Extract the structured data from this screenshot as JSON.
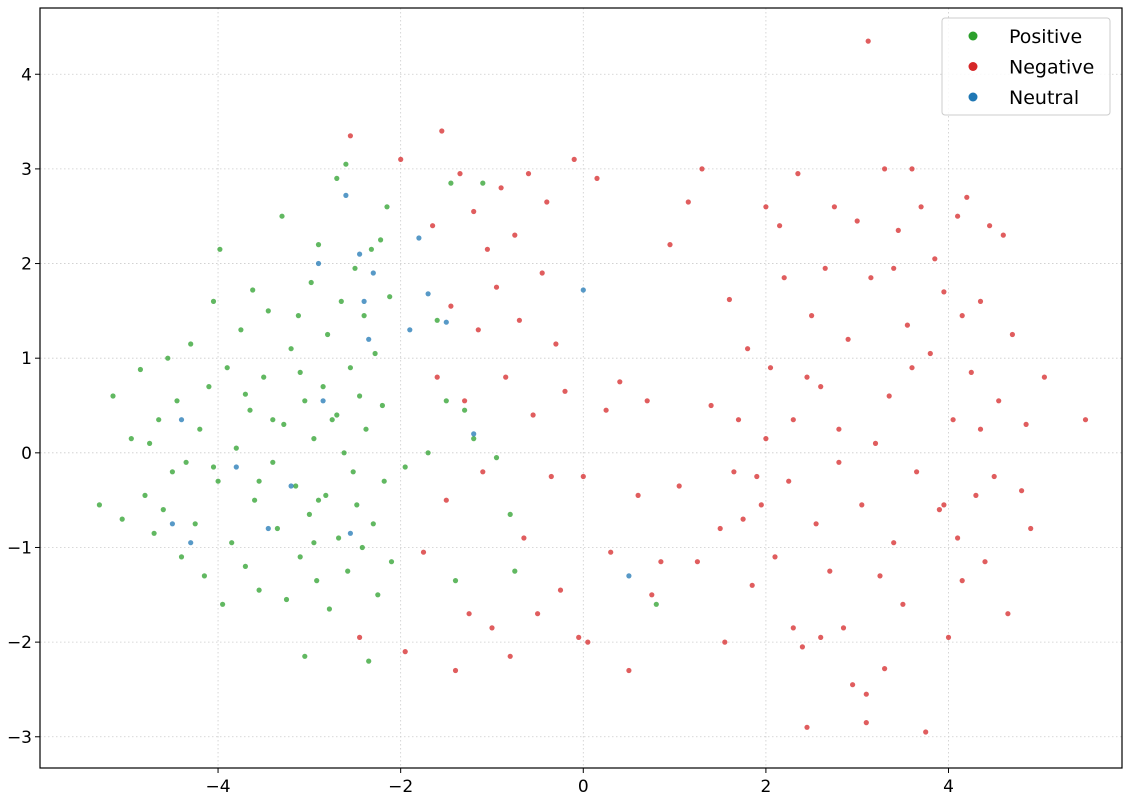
{
  "chart_data": {
    "type": "scatter",
    "title": "",
    "xlabel": "",
    "ylabel": "",
    "xlim": [
      -5.95,
      5.9
    ],
    "ylim": [
      -3.33,
      4.7
    ],
    "xticks": [
      -4,
      -2,
      0,
      2,
      4
    ],
    "yticks": [
      -3,
      -2,
      -1,
      0,
      1,
      2,
      3,
      4
    ],
    "xtick_labels": [
      "−4",
      "−2",
      "0",
      "2",
      "4"
    ],
    "ytick_labels": [
      "−3",
      "−2",
      "−1",
      "0",
      "1",
      "2",
      "3",
      "4"
    ],
    "grid": true,
    "legend_position": "top-right",
    "series": [
      {
        "name": "Positive",
        "color": "#2ca02c",
        "points": [
          [
            -5.3,
            -0.55
          ],
          [
            -5.15,
            0.6
          ],
          [
            -5.05,
            -0.7
          ],
          [
            -4.95,
            0.15
          ],
          [
            -4.85,
            0.88
          ],
          [
            -4.8,
            -0.45
          ],
          [
            -4.75,
            0.1
          ],
          [
            -4.7,
            -0.85
          ],
          [
            -4.65,
            0.35
          ],
          [
            -4.6,
            -0.6
          ],
          [
            -4.55,
            1.0
          ],
          [
            -4.5,
            -0.2
          ],
          [
            -4.45,
            0.55
          ],
          [
            -4.4,
            -1.1
          ],
          [
            -4.3,
            1.15
          ],
          [
            -4.25,
            -0.75
          ],
          [
            -4.2,
            0.25
          ],
          [
            -4.15,
            -1.3
          ],
          [
            -4.1,
            0.7
          ],
          [
            -4.05,
            1.6
          ],
          [
            -4.0,
            -0.3
          ],
          [
            -3.98,
            2.15
          ],
          [
            -3.95,
            -1.6
          ],
          [
            -3.9,
            0.9
          ],
          [
            -3.85,
            -0.95
          ],
          [
            -3.8,
            0.05
          ],
          [
            -3.75,
            1.3
          ],
          [
            -3.7,
            -1.2
          ],
          [
            -3.65,
            0.45
          ],
          [
            -3.62,
            1.72
          ],
          [
            -3.6,
            -0.5
          ],
          [
            -3.55,
            -1.45
          ],
          [
            -3.5,
            0.8
          ],
          [
            -3.45,
            1.5
          ],
          [
            -3.4,
            -0.1
          ],
          [
            -3.35,
            -0.8
          ],
          [
            -3.3,
            2.5
          ],
          [
            -3.28,
            0.3
          ],
          [
            -3.25,
            -1.55
          ],
          [
            -3.2,
            1.1
          ],
          [
            -3.15,
            -0.35
          ],
          [
            -3.12,
            1.45
          ],
          [
            -3.1,
            -1.1
          ],
          [
            -3.05,
            0.55
          ],
          [
            -3.05,
            -2.15
          ],
          [
            -3.0,
            -0.65
          ],
          [
            -2.98,
            1.8
          ],
          [
            -2.95,
            0.15
          ],
          [
            -2.92,
            -1.35
          ],
          [
            -2.9,
            2.2
          ],
          [
            -2.85,
            0.7
          ],
          [
            -2.82,
            -0.45
          ],
          [
            -2.8,
            1.25
          ],
          [
            -2.78,
            -1.65
          ],
          [
            -2.75,
            0.35
          ],
          [
            -2.7,
            2.9
          ],
          [
            -2.68,
            -0.9
          ],
          [
            -2.65,
            1.6
          ],
          [
            -2.62,
            0.0
          ],
          [
            -2.6,
            3.05
          ],
          [
            -2.58,
            -1.25
          ],
          [
            -2.55,
            0.9
          ],
          [
            -2.52,
            -0.2
          ],
          [
            -2.5,
            1.95
          ],
          [
            -2.48,
            -0.55
          ],
          [
            -2.45,
            0.6
          ],
          [
            -2.42,
            -1.0
          ],
          [
            -2.4,
            1.45
          ],
          [
            -2.38,
            0.25
          ],
          [
            -2.35,
            -2.2
          ],
          [
            -2.32,
            2.15
          ],
          [
            -2.3,
            -0.75
          ],
          [
            -2.28,
            1.05
          ],
          [
            -2.25,
            -1.5
          ],
          [
            -2.22,
            2.25
          ],
          [
            -2.2,
            0.5
          ],
          [
            -2.18,
            -0.3
          ],
          [
            -2.15,
            2.6
          ],
          [
            -2.12,
            1.65
          ],
          [
            -2.1,
            -1.15
          ],
          [
            -1.95,
            -0.15
          ],
          [
            -1.7,
            0.0
          ],
          [
            -1.6,
            1.4
          ],
          [
            -1.5,
            0.55
          ],
          [
            -1.45,
            2.85
          ],
          [
            -1.4,
            -1.35
          ],
          [
            -1.3,
            0.45
          ],
          [
            -1.2,
            0.15
          ],
          [
            -1.1,
            2.85
          ],
          [
            -0.95,
            -0.05
          ],
          [
            -0.8,
            -0.65
          ],
          [
            -0.75,
            -1.25
          ],
          [
            0.8,
            -1.6
          ],
          [
            -4.35,
            -0.1
          ],
          [
            -3.7,
            0.62
          ],
          [
            -3.1,
            0.85
          ],
          [
            -2.9,
            -0.5
          ],
          [
            -3.4,
            0.35
          ],
          [
            -2.7,
            0.4
          ],
          [
            -3.55,
            -0.3
          ],
          [
            -4.05,
            -0.15
          ],
          [
            -2.95,
            -0.95
          ]
        ]
      },
      {
        "name": "Negative",
        "color": "#d62728",
        "points": [
          [
            -2.55,
            3.35
          ],
          [
            -2.45,
            -1.95
          ],
          [
            -2.0,
            3.1
          ],
          [
            -1.95,
            -2.1
          ],
          [
            -1.75,
            -1.05
          ],
          [
            -1.65,
            2.4
          ],
          [
            -1.6,
            0.8
          ],
          [
            -1.55,
            3.4
          ],
          [
            -1.5,
            -0.5
          ],
          [
            -1.45,
            1.55
          ],
          [
            -1.4,
            -2.3
          ],
          [
            -1.35,
            2.95
          ],
          [
            -1.3,
            0.55
          ],
          [
            -1.25,
            -1.7
          ],
          [
            -1.2,
            2.55
          ],
          [
            -1.15,
            1.3
          ],
          [
            -1.1,
            -0.2
          ],
          [
            -1.05,
            2.15
          ],
          [
            -1.0,
            -1.85
          ],
          [
            -0.95,
            1.75
          ],
          [
            -0.9,
            2.8
          ],
          [
            -0.85,
            0.8
          ],
          [
            -0.8,
            -2.15
          ],
          [
            -0.75,
            2.3
          ],
          [
            -0.7,
            1.4
          ],
          [
            -0.65,
            -0.9
          ],
          [
            -0.6,
            2.95
          ],
          [
            -0.55,
            0.4
          ],
          [
            -0.5,
            -1.7
          ],
          [
            -0.45,
            1.9
          ],
          [
            -0.4,
            2.65
          ],
          [
            -0.35,
            -0.25
          ],
          [
            -0.3,
            1.15
          ],
          [
            -0.25,
            -1.45
          ],
          [
            -0.2,
            0.65
          ],
          [
            -0.1,
            3.1
          ],
          [
            -0.05,
            -1.95
          ],
          [
            0.0,
            -0.25
          ],
          [
            0.05,
            -2.0
          ],
          [
            0.15,
            2.9
          ],
          [
            0.25,
            0.45
          ],
          [
            0.3,
            -1.05
          ],
          [
            0.4,
            0.75
          ],
          [
            0.5,
            -2.3
          ],
          [
            0.6,
            -0.45
          ],
          [
            0.7,
            0.55
          ],
          [
            0.75,
            -1.5
          ],
          [
            0.85,
            -1.15
          ],
          [
            0.95,
            2.2
          ],
          [
            1.05,
            -0.35
          ],
          [
            1.15,
            2.65
          ],
          [
            1.25,
            -1.15
          ],
          [
            1.3,
            3.0
          ],
          [
            1.4,
            0.5
          ],
          [
            1.5,
            -0.8
          ],
          [
            1.55,
            -2.0
          ],
          [
            1.6,
            1.62
          ],
          [
            1.65,
            -0.2
          ],
          [
            1.7,
            0.35
          ],
          [
            1.8,
            1.1
          ],
          [
            1.85,
            -1.4
          ],
          [
            1.95,
            -0.55
          ],
          [
            2.0,
            2.6
          ],
          [
            2.05,
            0.9
          ],
          [
            2.1,
            -1.1
          ],
          [
            2.15,
            2.4
          ],
          [
            2.2,
            1.85
          ],
          [
            2.25,
            -0.3
          ],
          [
            2.3,
            0.35
          ],
          [
            2.35,
            2.95
          ],
          [
            2.4,
            -2.05
          ],
          [
            2.45,
            -2.9
          ],
          [
            2.5,
            1.45
          ],
          [
            2.55,
            -0.75
          ],
          [
            2.6,
            0.7
          ],
          [
            2.65,
            1.95
          ],
          [
            2.7,
            -1.25
          ],
          [
            2.75,
            2.6
          ],
          [
            2.8,
            0.25
          ],
          [
            2.85,
            -1.85
          ],
          [
            2.9,
            1.2
          ],
          [
            2.95,
            -2.45
          ],
          [
            3.0,
            2.45
          ],
          [
            3.05,
            -0.55
          ],
          [
            3.1,
            -2.85
          ],
          [
            3.12,
            4.35
          ],
          [
            3.15,
            1.85
          ],
          [
            3.2,
            0.1
          ],
          [
            3.25,
            -1.3
          ],
          [
            3.3,
            3.0
          ],
          [
            3.35,
            0.6
          ],
          [
            3.4,
            -0.95
          ],
          [
            3.45,
            2.35
          ],
          [
            3.5,
            -1.6
          ],
          [
            3.55,
            1.35
          ],
          [
            3.6,
            3.0
          ],
          [
            3.65,
            -0.2
          ],
          [
            3.7,
            2.6
          ],
          [
            3.75,
            -2.95
          ],
          [
            3.8,
            1.05
          ],
          [
            3.85,
            2.05
          ],
          [
            3.9,
            -0.6
          ],
          [
            3.95,
            1.7
          ],
          [
            4.0,
            -1.95
          ],
          [
            4.05,
            0.35
          ],
          [
            4.1,
            2.5
          ],
          [
            4.15,
            -1.35
          ],
          [
            4.2,
            2.7
          ],
          [
            4.25,
            0.85
          ],
          [
            4.3,
            -0.45
          ],
          [
            4.35,
            1.6
          ],
          [
            4.4,
            -1.15
          ],
          [
            4.45,
            2.4
          ],
          [
            4.5,
            -0.25
          ],
          [
            4.55,
            0.55
          ],
          [
            4.6,
            2.3
          ],
          [
            4.65,
            -1.7
          ],
          [
            4.7,
            1.25
          ],
          [
            4.8,
            -0.4
          ],
          [
            4.85,
            0.3
          ],
          [
            4.9,
            -0.8
          ],
          [
            5.05,
            0.8
          ],
          [
            5.5,
            0.35
          ],
          [
            1.9,
            -0.25
          ],
          [
            2.3,
            -1.85
          ],
          [
            3.1,
            -2.55
          ],
          [
            3.3,
            -2.28
          ],
          [
            2.6,
            -1.95
          ],
          [
            4.1,
            -0.9
          ],
          [
            3.6,
            0.9
          ],
          [
            2.0,
            0.15
          ],
          [
            1.75,
            -0.7
          ],
          [
            3.95,
            -0.55
          ],
          [
            4.35,
            0.25
          ],
          [
            2.8,
            -0.1
          ],
          [
            3.4,
            1.95
          ],
          [
            4.15,
            1.45
          ],
          [
            2.45,
            0.8
          ]
        ]
      },
      {
        "name": "Neutral",
        "color": "#1f77b4",
        "points": [
          [
            -4.4,
            0.35
          ],
          [
            -4.3,
            -0.95
          ],
          [
            -3.8,
            -0.15
          ],
          [
            -3.2,
            -0.35
          ],
          [
            -2.9,
            2.0
          ],
          [
            -2.85,
            0.55
          ],
          [
            -2.6,
            2.72
          ],
          [
            -2.55,
            -0.85
          ],
          [
            -2.45,
            2.1
          ],
          [
            -2.4,
            1.6
          ],
          [
            -2.35,
            1.2
          ],
          [
            -2.3,
            1.9
          ],
          [
            -1.8,
            2.27
          ],
          [
            -1.7,
            1.68
          ],
          [
            -1.5,
            1.38
          ],
          [
            -1.2,
            0.2
          ],
          [
            0.0,
            1.72
          ],
          [
            0.5,
            -1.3
          ],
          [
            -3.45,
            -0.8
          ],
          [
            -4.5,
            -0.75
          ],
          [
            -1.9,
            1.3
          ]
        ]
      }
    ]
  }
}
